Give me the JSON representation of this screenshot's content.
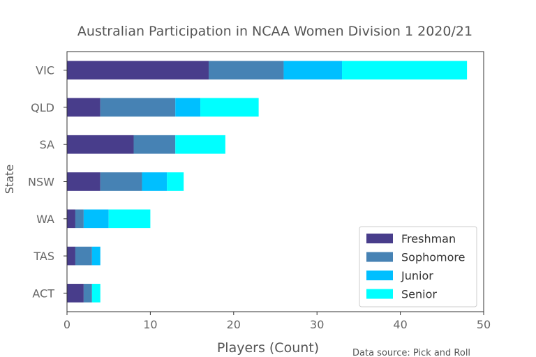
{
  "chart_data": {
    "type": "bar",
    "orientation": "horizontal",
    "stacked": true,
    "title": "Australian Participation in NCAA Women Division 1 2020/21",
    "xlabel": "Players (Count)",
    "ylabel": "State",
    "categories": [
      "VIC",
      "QLD",
      "SA",
      "NSW",
      "WA",
      "TAS",
      "ACT"
    ],
    "xlim": [
      0,
      50
    ],
    "xticks": [
      0,
      10,
      20,
      30,
      40,
      50
    ],
    "series": [
      {
        "name": "Freshman",
        "color": "#483d8b",
        "values": [
          17,
          4,
          8,
          4,
          1,
          1,
          2
        ]
      },
      {
        "name": "Sophomore",
        "color": "#4682b4",
        "values": [
          9,
          9,
          5,
          5,
          1,
          2,
          1
        ]
      },
      {
        "name": "Junior",
        "color": "#00bfff",
        "values": [
          7,
          3,
          0,
          3,
          3,
          1,
          0
        ]
      },
      {
        "name": "Senior",
        "color": "#00ffff",
        "values": [
          15,
          7,
          6,
          2,
          5,
          0,
          1
        ]
      }
    ],
    "legend_position": "lower-right",
    "grid": false,
    "source_note": "Data source: Pick and Roll"
  }
}
